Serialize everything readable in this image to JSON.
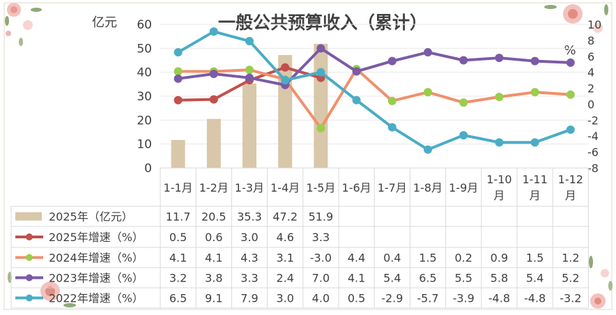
{
  "chart_data": {
    "type": "bar",
    "title": "一般公共预算收入（累计）",
    "y_left_unit": "亿元",
    "y_right_unit": "%",
    "y_left_ticks": [
      "0",
      "10",
      "20",
      "30",
      "40",
      "50",
      "60"
    ],
    "y_right_ticks": [
      "-8",
      "-6",
      "-4",
      "-2",
      "0",
      "2",
      "4",
      "6",
      "8",
      "10"
    ],
    "ylim_left": [
      0,
      60
    ],
    "ylim_right": [
      -8,
      10
    ],
    "categories": [
      "1-1月",
      "1-2月",
      "1-3月",
      "1-4月",
      "1-5月",
      "1-6月",
      "1-7月",
      "1-8月",
      "1-9月",
      "1-10月",
      "1-11月",
      "1-12月"
    ],
    "category_lines": [
      [
        "1-1月"
      ],
      [
        "1-2月"
      ],
      [
        "1-3月"
      ],
      [
        "1-4月"
      ],
      [
        "1-5月"
      ],
      [
        "1-6月"
      ],
      [
        "1-7月"
      ],
      [
        "1-8月"
      ],
      [
        "1-9月"
      ],
      [
        "1-10",
        "月"
      ],
      [
        "1-11",
        "月"
      ],
      [
        "1-12",
        "月"
      ]
    ],
    "bar_series": {
      "name": "2025年（亿元）",
      "color": "#d9c7a9",
      "values": [
        11.7,
        20.5,
        35.3,
        47.2,
        51.9,
        null,
        null,
        null,
        null,
        null,
        null,
        null
      ],
      "labels": [
        "11.7",
        "20.5",
        "35.3",
        "47.2",
        "51.9",
        "",
        "",
        "",
        "",
        "",
        "",
        ""
      ]
    },
    "line_series": [
      {
        "name": "2025年增速（%）",
        "color": "#c0504d",
        "values": [
          0.5,
          0.6,
          3.0,
          4.6,
          3.3,
          null,
          null,
          null,
          null,
          null,
          null,
          null
        ],
        "labels": [
          "0.5",
          "0.6",
          "3.0",
          "4.6",
          "3.3",
          "",
          "",
          "",
          "",
          "",
          "",
          ""
        ]
      },
      {
        "name": "2024年增速（%）",
        "color": "#f0906c",
        "marker_color": "#9acd4c",
        "values": [
          4.1,
          4.1,
          4.3,
          3.1,
          -3.0,
          4.4,
          0.4,
          1.5,
          0.2,
          0.9,
          1.5,
          1.2
        ],
        "labels": [
          "4.1",
          "4.1",
          "4.3",
          "3.1",
          "-3.0",
          "4.4",
          "0.4",
          "1.5",
          "0.2",
          "0.9",
          "1.5",
          "1.2"
        ]
      },
      {
        "name": "2023年增速（%）",
        "color": "#7b5aa6",
        "values": [
          3.2,
          3.8,
          3.3,
          2.4,
          7.0,
          4.1,
          5.4,
          6.5,
          5.5,
          5.8,
          5.4,
          5.2
        ],
        "labels": [
          "3.2",
          "3.8",
          "3.3",
          "2.4",
          "7.0",
          "4.1",
          "5.4",
          "6.5",
          "5.5",
          "5.8",
          "5.4",
          "5.2"
        ]
      },
      {
        "name": "2022年增速（%）",
        "color": "#4bacc6",
        "values": [
          6.5,
          9.1,
          7.9,
          3.0,
          4.0,
          0.5,
          -2.9,
          -5.7,
          -3.9,
          -4.8,
          -4.8,
          -3.2
        ],
        "labels": [
          "6.5",
          "9.1",
          "7.9",
          "3.0",
          "4.0",
          "0.5",
          "-2.9",
          "-5.7",
          "-3.9",
          "-4.8",
          "-4.8",
          "-3.2"
        ]
      }
    ],
    "legend_placement": "data-table",
    "grid": true
  }
}
